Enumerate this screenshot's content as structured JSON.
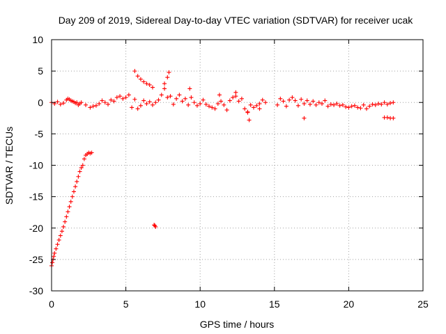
{
  "chart_data": {
    "type": "scatter",
    "title": "Day 209 of 2019, Sidereal Day-to-day VTEC variation (SDTVAR) for receiver ucak",
    "xlabel": "GPS time / hours",
    "ylabel": "SDTVAR / TECUs",
    "xlim": [
      0,
      25
    ],
    "ylim": [
      -30,
      10
    ],
    "xticks": [
      0,
      5,
      10,
      15,
      20,
      25
    ],
    "yticks": [
      -30,
      -25,
      -20,
      -15,
      -10,
      -5,
      0,
      5,
      10
    ],
    "xtick_labels": [
      "0",
      "5",
      "10",
      "15",
      "20",
      "25"
    ],
    "ytick_labels": [
      "-30",
      "-25",
      "-20",
      "-15",
      "-10",
      "-5",
      "0",
      "5",
      "10"
    ],
    "grid": true,
    "marker": "plus",
    "color": "#ff0000",
    "series": [
      {
        "name": "SDTVAR",
        "x": [
          0.0,
          0.05,
          0.1,
          0.15,
          0.2,
          0.3,
          0.4,
          0.5,
          0.6,
          0.7,
          0.8,
          0.9,
          1.0,
          1.1,
          1.2,
          1.3,
          1.4,
          1.5,
          1.6,
          1.7,
          1.8,
          1.9,
          2.0,
          2.1,
          2.2,
          2.3,
          2.4,
          2.5,
          2.6,
          2.7,
          0.0,
          0.2,
          0.4,
          0.6,
          0.8,
          1.0,
          1.1,
          1.2,
          1.3,
          1.4,
          1.5,
          1.6,
          1.7,
          1.8,
          1.9,
          2.0,
          2.3,
          2.6,
          2.8,
          3.0,
          3.2,
          3.4,
          3.6,
          3.8,
          4.0,
          4.2,
          4.4,
          4.6,
          4.8,
          5.0,
          5.2,
          5.4,
          5.6,
          5.8,
          6.0,
          6.2,
          6.4,
          6.6,
          6.8,
          7.0,
          7.2,
          7.4,
          7.6,
          7.8,
          8.0,
          8.2,
          8.4,
          8.6,
          8.8,
          9.0,
          9.2,
          9.4,
          9.6,
          9.8,
          10.0,
          10.2,
          10.4,
          10.6,
          10.8,
          11.0,
          11.2,
          11.4,
          11.6,
          11.8,
          12.0,
          12.2,
          12.4,
          12.6,
          12.8,
          13.0,
          13.2,
          13.4,
          13.6,
          13.8,
          14.0,
          14.2,
          14.4,
          15.2,
          15.4,
          15.6,
          15.8,
          16.0,
          16.2,
          16.4,
          16.6,
          16.8,
          17.0,
          17.2,
          17.4,
          17.6,
          17.8,
          18.0,
          18.2,
          18.4,
          18.6,
          18.8,
          19.0,
          19.2,
          19.4,
          19.6,
          19.8,
          20.0,
          20.2,
          20.4,
          20.6,
          20.8,
          21.0,
          21.2,
          21.4,
          21.6,
          21.8,
          22.0,
          22.2,
          22.4,
          22.6,
          22.8,
          23.0,
          5.6,
          5.8,
          6.0,
          6.2,
          6.4,
          6.6,
          6.8,
          7.6,
          7.8,
          7.9,
          6.9,
          7.0,
          6.95,
          13.3,
          13.2,
          17.0,
          22.4,
          22.6,
          22.8,
          23.0,
          9.3,
          11.3,
          14.0,
          12.4
        ],
        "y": [
          -26.0,
          -25.5,
          -25.0,
          -24.5,
          -24.0,
          -23.3,
          -22.6,
          -21.9,
          -21.2,
          -20.5,
          -19.8,
          -19.0,
          -18.2,
          -17.4,
          -16.6,
          -15.8,
          -15.0,
          -14.2,
          -13.4,
          -12.6,
          -11.8,
          -11.0,
          -10.4,
          -10.0,
          -9.0,
          -8.4,
          -8.2,
          -8.0,
          -8.1,
          -8.0,
          0.0,
          -0.2,
          0.1,
          -0.3,
          -0.1,
          0.4,
          0.6,
          0.5,
          0.3,
          0.2,
          0.1,
          -0.1,
          0.0,
          -0.4,
          -0.2,
          0.0,
          -0.4,
          -0.8,
          -0.6,
          -0.5,
          -0.2,
          0.3,
          0.0,
          -0.3,
          0.4,
          0.2,
          0.8,
          1.0,
          0.6,
          0.8,
          1.2,
          -0.8,
          0.5,
          -1.0,
          -0.5,
          0.3,
          -0.2,
          0.1,
          -0.4,
          0.0,
          0.4,
          1.2,
          2.2,
          0.8,
          1.0,
          -0.3,
          0.6,
          1.2,
          0.2,
          0.6,
          -0.4,
          0.8,
          0.0,
          -0.5,
          -0.2,
          0.4,
          -0.3,
          -0.6,
          -0.8,
          -1.0,
          -0.2,
          0.2,
          -0.4,
          -1.2,
          0.3,
          0.8,
          1.0,
          0.2,
          0.6,
          -1.0,
          -1.6,
          -0.4,
          -0.8,
          -0.5,
          -0.2,
          0.4,
          0.0,
          -0.4,
          0.6,
          0.2,
          -0.6,
          0.4,
          0.8,
          0.3,
          -0.5,
          0.5,
          -0.2,
          0.3,
          -0.3,
          0.2,
          -0.4,
          0.0,
          -0.2,
          0.3,
          -0.6,
          -0.3,
          -0.4,
          -0.2,
          -0.5,
          -0.4,
          -0.7,
          -0.8,
          -0.6,
          -0.5,
          -0.8,
          -0.9,
          -0.4,
          -1.0,
          -0.6,
          -0.3,
          -0.4,
          -0.2,
          -0.3,
          0.0,
          -0.3,
          -0.1,
          0.0,
          5.0,
          4.2,
          3.7,
          3.3,
          3.0,
          2.8,
          2.4,
          3.0,
          4.0,
          4.8,
          -19.5,
          -19.8,
          -19.6,
          -2.8,
          -1.5,
          -2.5,
          -2.4,
          -2.4,
          -2.5,
          -2.5,
          2.2,
          1.2,
          -1.0,
          1.6
        ]
      }
    ]
  }
}
